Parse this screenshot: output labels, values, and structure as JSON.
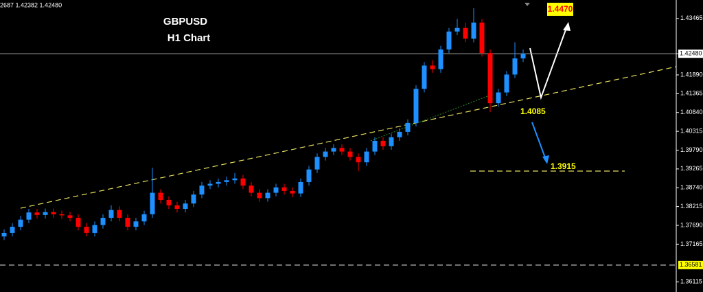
{
  "chart_data": {
    "type": "candlestick",
    "title": "GBPUSD",
    "subtitle": "H1 Chart",
    "info": "2687 1.42382 1.42480",
    "up_color": "#1e90ff",
    "down_color": "#ff0000",
    "ylim": [
      1.3583,
      1.4398
    ],
    "yticks": [
      1.43465,
      1.4248,
      {
        "value": 1.4189,
        "label": "1.41890"
      },
      1.41365,
      {
        "value": 1.4084,
        "label": "1.40840"
      },
      1.40315,
      {
        "value": 1.3979,
        "label": "1.39790"
      },
      1.39265,
      {
        "value": 1.3874,
        "label": "1.38740"
      },
      1.38215,
      {
        "value": 1.3769,
        "label": "1.37690"
      },
      1.37165,
      1.36115
    ],
    "current_price": {
      "value": 1.4248,
      "label": "1.42480"
    },
    "support_line": {
      "value": 1.36581,
      "label": "1.36581"
    },
    "annotations": [
      "1.4470",
      "1.4085",
      "1.3915"
    ],
    "ohlc": [
      [
        1.3738,
        1.3758,
        1.3728,
        1.3748
      ],
      [
        1.3748,
        1.3775,
        1.3738,
        1.3765
      ],
      [
        1.3765,
        1.3795,
        1.3755,
        1.3785
      ],
      [
        1.3785,
        1.3815,
        1.3775,
        1.3805
      ],
      [
        1.3805,
        1.3815,
        1.3788,
        1.3798
      ],
      [
        1.3798,
        1.3816,
        1.3788,
        1.3806
      ],
      [
        1.3806,
        1.3816,
        1.379,
        1.38
      ],
      [
        1.38,
        1.381,
        1.3787,
        1.3797
      ],
      [
        1.3797,
        1.3807,
        1.378,
        1.379
      ],
      [
        1.379,
        1.38,
        1.3755,
        1.3765
      ],
      [
        1.3765,
        1.3775,
        1.3738,
        1.3748
      ],
      [
        1.3748,
        1.378,
        1.3738,
        1.377
      ],
      [
        1.377,
        1.38,
        1.376,
        1.379
      ],
      [
        1.379,
        1.3825,
        1.378,
        1.3812
      ],
      [
        1.3812,
        1.3822,
        1.378,
        1.379
      ],
      [
        1.379,
        1.38,
        1.3755,
        1.3765
      ],
      [
        1.3765,
        1.379,
        1.3755,
        1.378
      ],
      [
        1.378,
        1.381,
        1.377,
        1.38
      ],
      [
        1.38,
        1.393,
        1.379,
        1.386
      ],
      [
        1.386,
        1.387,
        1.383,
        1.384
      ],
      [
        1.384,
        1.385,
        1.3815,
        1.3825
      ],
      [
        1.3825,
        1.3835,
        1.3805,
        1.3815
      ],
      [
        1.3815,
        1.384,
        1.3805,
        1.383
      ],
      [
        1.383,
        1.3865,
        1.382,
        1.3855
      ],
      [
        1.3855,
        1.389,
        1.3845,
        1.388
      ],
      [
        1.388,
        1.3895,
        1.387,
        1.3885
      ],
      [
        1.3885,
        1.39,
        1.3875,
        1.389
      ],
      [
        1.389,
        1.3905,
        1.388,
        1.3895
      ],
      [
        1.3895,
        1.3915,
        1.3885,
        1.39
      ],
      [
        1.39,
        1.391,
        1.387,
        1.388
      ],
      [
        1.388,
        1.389,
        1.385,
        1.386
      ],
      [
        1.386,
        1.387,
        1.3835,
        1.3845
      ],
      [
        1.3845,
        1.387,
        1.3835,
        1.386
      ],
      [
        1.386,
        1.3885,
        1.385,
        1.3875
      ],
      [
        1.3875,
        1.3885,
        1.3855,
        1.3865
      ],
      [
        1.3865,
        1.3875,
        1.3848,
        1.3858
      ],
      [
        1.3858,
        1.39,
        1.3848,
        1.389
      ],
      [
        1.389,
        1.3935,
        1.388,
        1.3925
      ],
      [
        1.3925,
        1.397,
        1.3915,
        1.396
      ],
      [
        1.396,
        1.3985,
        1.395,
        1.3975
      ],
      [
        1.3975,
        1.3995,
        1.3965,
        1.3985
      ],
      [
        1.3985,
        1.3995,
        1.3965,
        1.3975
      ],
      [
        1.3975,
        1.3985,
        1.395,
        1.396
      ],
      [
        1.396,
        1.397,
        1.392,
        1.3945
      ],
      [
        1.3945,
        1.3985,
        1.3935,
        1.3975
      ],
      [
        1.3975,
        1.4015,
        1.3965,
        1.4005
      ],
      [
        1.4005,
        1.4015,
        1.398,
        1.399
      ],
      [
        1.399,
        1.4025,
        1.398,
        1.4015
      ],
      [
        1.4015,
        1.404,
        1.4005,
        1.403
      ],
      [
        1.403,
        1.4065,
        1.402,
        1.4055
      ],
      [
        1.4055,
        1.416,
        1.4045,
        1.415
      ],
      [
        1.415,
        1.4225,
        1.414,
        1.4215
      ],
      [
        1.4215,
        1.423,
        1.4195,
        1.4205
      ],
      [
        1.4205,
        1.427,
        1.4195,
        1.426
      ],
      [
        1.426,
        1.432,
        1.425,
        1.431
      ],
      [
        1.431,
        1.4345,
        1.43,
        1.432
      ],
      [
        1.432,
        1.4335,
        1.428,
        1.429
      ],
      [
        1.429,
        1.4375,
        1.428,
        1.4335
      ],
      [
        1.4335,
        1.4345,
        1.424,
        1.425
      ],
      [
        1.425,
        1.426,
        1.4085,
        1.411
      ],
      [
        1.411,
        1.415,
        1.41,
        1.414
      ],
      [
        1.414,
        1.42,
        1.413,
        1.419
      ],
      [
        1.419,
        1.428,
        1.418,
        1.4235
      ],
      [
        1.4235,
        1.426,
        1.4225,
        1.4248
      ]
    ]
  }
}
